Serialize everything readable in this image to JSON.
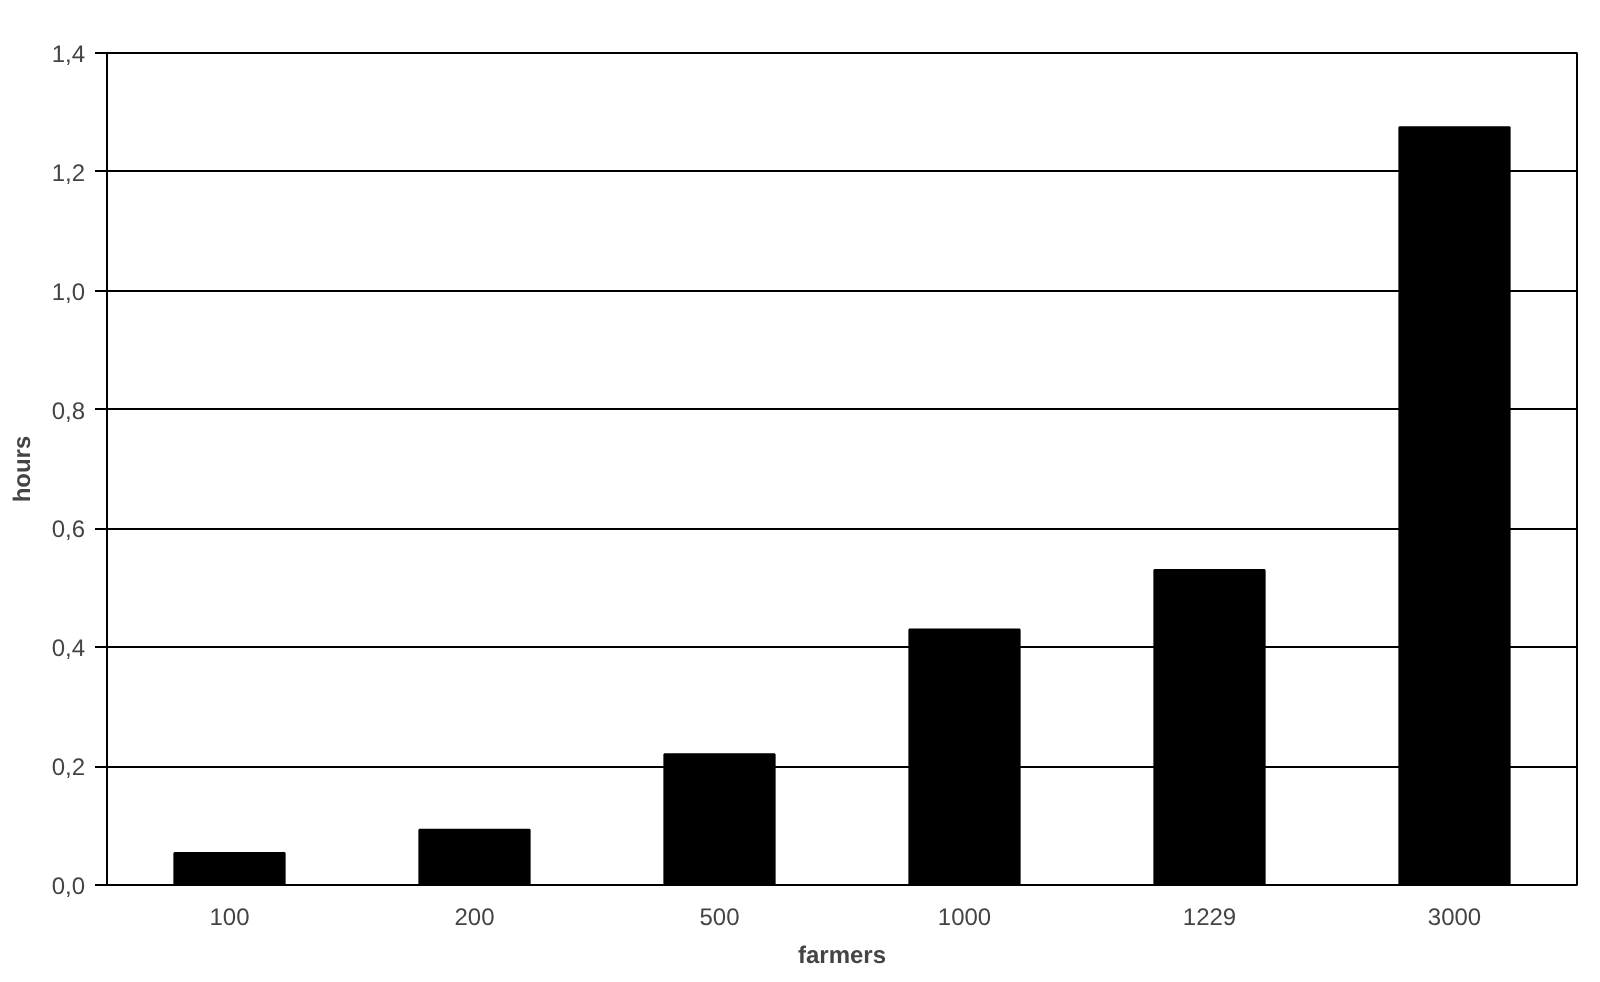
{
  "chart_data": {
    "type": "bar",
    "xlabel": "farmers",
    "ylabel": "hours",
    "categories": [
      "100",
      "200",
      "500",
      "1000",
      "1229",
      "3000"
    ],
    "values": [
      0.054,
      0.093,
      0.22,
      0.43,
      0.53,
      1.275
    ],
    "color": "#000000",
    "ylim": [
      0,
      1.4
    ],
    "yticks": [
      {
        "value": 0,
        "label": "0,0"
      },
      {
        "value": 0.2,
        "label": "0,2"
      },
      {
        "value": 0.4,
        "label": "0,4"
      },
      {
        "value": 0.6,
        "label": "0,6"
      },
      {
        "value": 0.8,
        "label": "0,8"
      },
      {
        "value": 1.0,
        "label": "1,0"
      },
      {
        "value": 1.2,
        "label": "1,2"
      },
      {
        "value": 1.4,
        "label": "1,4"
      }
    ],
    "grid": "y"
  }
}
